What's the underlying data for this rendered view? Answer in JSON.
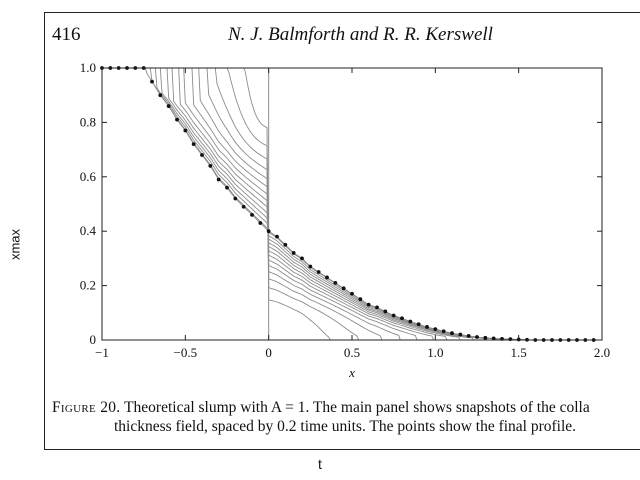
{
  "header": {
    "page_number": "416",
    "authors": "N. J. Balmforth and R. R. Kerswell"
  },
  "outer_axes": {
    "ylabel": "xmax",
    "xlabel": "t"
  },
  "caption": {
    "figure_label": "Figure 20.",
    "line1_text": " Theoretical slump with A = 1. The main panel shows snapshots of the colla",
    "line2": "thickness field, spaced by 0.2 time units. The points show the final profile."
  },
  "chart_data": {
    "type": "line",
    "title": "",
    "xlabel": "x",
    "ylabel": "",
    "xlim": [
      -1,
      2
    ],
    "ylim": [
      0,
      1
    ],
    "xticks": [
      -1,
      -0.5,
      0,
      0.5,
      1.0,
      1.5,
      2.0
    ],
    "xtick_labels": [
      "−1",
      "−0.5",
      "0",
      "0.5",
      "1.0",
      "1.5",
      "2.0"
    ],
    "yticks": [
      0,
      0.2,
      0.4,
      0.6,
      0.8,
      1.0
    ],
    "ytick_labels": [
      "0",
      "0.2",
      "0.4",
      "0.6",
      "0.8",
      "1.0"
    ],
    "initial_profile": {
      "x": [
        -1,
        0,
        0,
        2
      ],
      "y": [
        1,
        1,
        0,
        0
      ]
    },
    "snapshot_count": 14,
    "snapshot_interval": 0.2,
    "final_profile_points": {
      "x": [
        -1.0,
        -0.95,
        -0.9,
        -0.85,
        -0.8,
        -0.75,
        -0.7,
        -0.65,
        -0.6,
        -0.55,
        -0.5,
        -0.45,
        -0.4,
        -0.35,
        -0.3,
        -0.25,
        -0.2,
        -0.15,
        -0.1,
        -0.05,
        0.0,
        0.05,
        0.1,
        0.15,
        0.2,
        0.25,
        0.3,
        0.35,
        0.4,
        0.45,
        0.5,
        0.55,
        0.6,
        0.65,
        0.7,
        0.75,
        0.8,
        0.85,
        0.9,
        0.95,
        1.0,
        1.05,
        1.1,
        1.15,
        1.2,
        1.25,
        1.3,
        1.35,
        1.4,
        1.45,
        1.5,
        1.55,
        1.6,
        1.65,
        1.7,
        1.75,
        1.8,
        1.85,
        1.9,
        1.95
      ],
      "y": [
        1.0,
        1.0,
        1.0,
        1.0,
        1.0,
        1.0,
        0.95,
        0.9,
        0.86,
        0.81,
        0.77,
        0.72,
        0.68,
        0.64,
        0.59,
        0.56,
        0.52,
        0.49,
        0.46,
        0.43,
        0.4,
        0.38,
        0.35,
        0.32,
        0.3,
        0.27,
        0.25,
        0.23,
        0.21,
        0.19,
        0.17,
        0.15,
        0.13,
        0.12,
        0.105,
        0.09,
        0.08,
        0.068,
        0.058,
        0.048,
        0.04,
        0.032,
        0.025,
        0.02,
        0.015,
        0.011,
        0.008,
        0.006,
        0.004,
        0.003,
        0.002,
        0.001,
        0.0,
        0.0,
        0.0,
        0.0,
        0.0,
        0.0,
        0.0,
        0.0
      ]
    },
    "colors": {
      "snapshot_line": "#8c8c8c",
      "points": "#111111"
    }
  }
}
